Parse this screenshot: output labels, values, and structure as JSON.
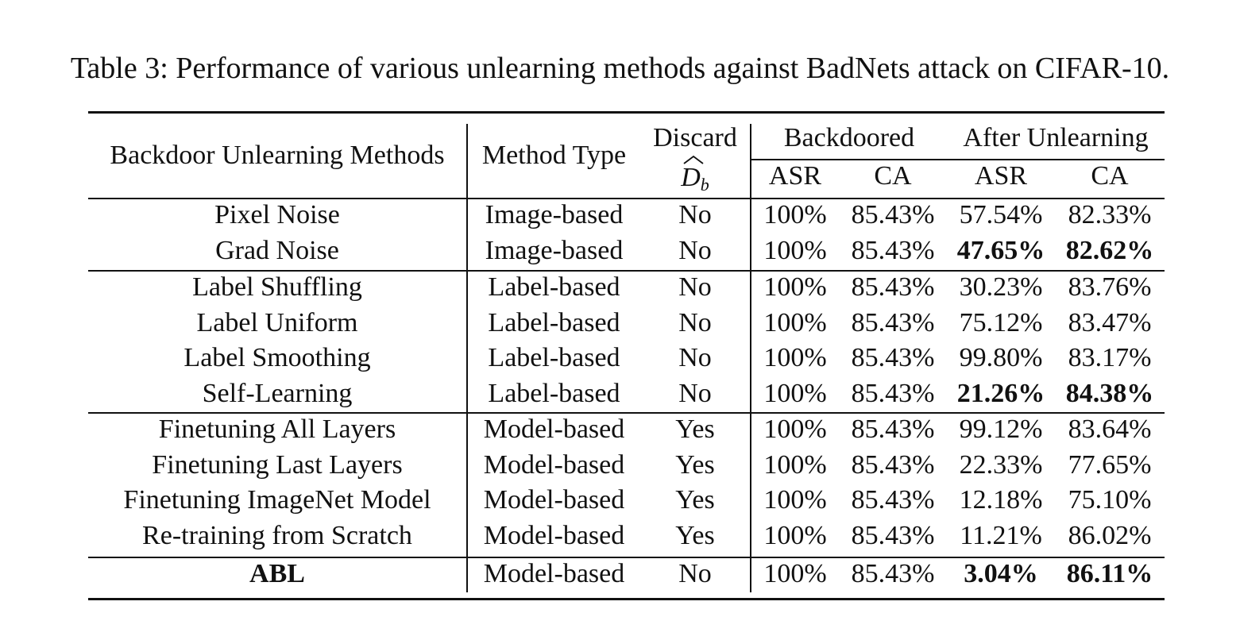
{
  "caption": "Table 3: Performance of various unlearning methods against BadNets attack on CIFAR-10.",
  "headers": {
    "method": "Backdoor Unlearning Methods",
    "type": "Method Type",
    "discard": "Discard",
    "discard_symbol": "D",
    "discard_subscript": "b",
    "backdoored": "Backdoored",
    "after": "After Unlearning",
    "asr": "ASR",
    "ca": "CA"
  },
  "groups": [
    {
      "rows": [
        {
          "method": "Pixel Noise",
          "type": "Image-based",
          "discard": "No",
          "b_asr": "100%",
          "b_ca": "85.43%",
          "a_asr": "57.54%",
          "a_ca": "82.33%",
          "bold_method": false,
          "bold_after": false
        },
        {
          "method": "Grad Noise",
          "type": "Image-based",
          "discard": "No",
          "b_asr": "100%",
          "b_ca": "85.43%",
          "a_asr": "47.65%",
          "a_ca": "82.62%",
          "bold_method": false,
          "bold_after": true
        }
      ]
    },
    {
      "rows": [
        {
          "method": "Label Shuffling",
          "type": "Label-based",
          "discard": "No",
          "b_asr": "100%",
          "b_ca": "85.43%",
          "a_asr": "30.23%",
          "a_ca": "83.76%",
          "bold_method": false,
          "bold_after": false
        },
        {
          "method": "Label Uniform",
          "type": "Label-based",
          "discard": "No",
          "b_asr": "100%",
          "b_ca": "85.43%",
          "a_asr": "75.12%",
          "a_ca": "83.47%",
          "bold_method": false,
          "bold_after": false
        },
        {
          "method": "Label Smoothing",
          "type": "Label-based",
          "discard": "No",
          "b_asr": "100%",
          "b_ca": "85.43%",
          "a_asr": "99.80%",
          "a_ca": "83.17%",
          "bold_method": false,
          "bold_after": false
        },
        {
          "method": "Self-Learning",
          "type": "Label-based",
          "discard": "No",
          "b_asr": "100%",
          "b_ca": "85.43%",
          "a_asr": "21.26%",
          "a_ca": "84.38%",
          "bold_method": false,
          "bold_after": true
        }
      ]
    },
    {
      "rows": [
        {
          "method": "Finetuning All Layers",
          "type": "Model-based",
          "discard": "Yes",
          "b_asr": "100%",
          "b_ca": "85.43%",
          "a_asr": "99.12%",
          "a_ca": "83.64%",
          "bold_method": false,
          "bold_after": false
        },
        {
          "method": "Finetuning Last Layers",
          "type": "Model-based",
          "discard": "Yes",
          "b_asr": "100%",
          "b_ca": "85.43%",
          "a_asr": "22.33%",
          "a_ca": "77.65%",
          "bold_method": false,
          "bold_after": false
        },
        {
          "method": "Finetuning ImageNet Model",
          "type": "Model-based",
          "discard": "Yes",
          "b_asr": "100%",
          "b_ca": "85.43%",
          "a_asr": "12.18%",
          "a_ca": "75.10%",
          "bold_method": false,
          "bold_after": false
        },
        {
          "method": "Re-training from Scratch",
          "type": "Model-based",
          "discard": "Yes",
          "b_asr": "100%",
          "b_ca": "85.43%",
          "a_asr": "11.21%",
          "a_ca": "86.02%",
          "bold_method": false,
          "bold_after": false
        }
      ]
    },
    {
      "rows": [
        {
          "method": "ABL",
          "type": "Model-based",
          "discard": "No",
          "b_asr": "100%",
          "b_ca": "85.43%",
          "a_asr": "3.04%",
          "a_ca": "86.11%",
          "bold_method": true,
          "bold_after": true
        }
      ]
    }
  ]
}
